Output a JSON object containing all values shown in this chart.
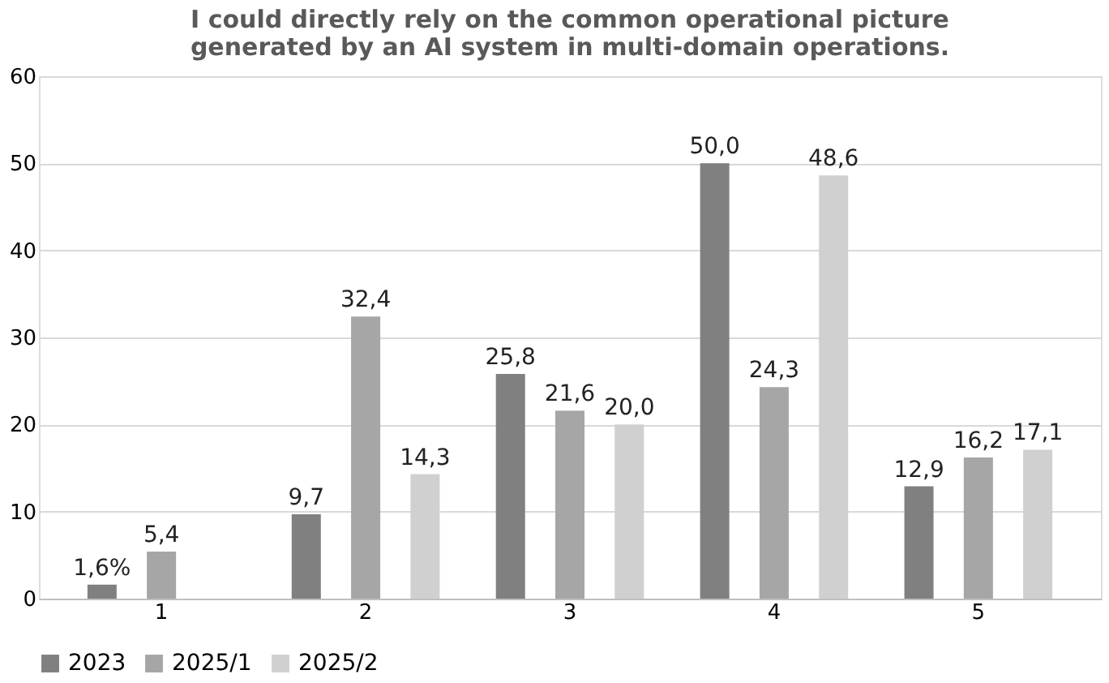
{
  "chart_data": {
    "type": "bar",
    "title": "I could directly rely on the common operational picture generated by an AI system in multi-domain operations.",
    "categories": [
      "1",
      "2",
      "3",
      "4",
      "5"
    ],
    "series": [
      {
        "name": "2023",
        "color": "#808080",
        "values": [
          1.6,
          9.7,
          25.8,
          50.0,
          12.9
        ],
        "value_labels": [
          "1,6%",
          "9,7",
          "25,8",
          "50,0",
          "12,9"
        ]
      },
      {
        "name": "2025/1",
        "color": "#a6a6a6",
        "values": [
          5.4,
          32.4,
          21.6,
          24.3,
          16.2
        ],
        "value_labels": [
          "5,4",
          "32,4",
          "21,6",
          "24,3",
          "16,2"
        ]
      },
      {
        "name": "2025/2",
        "color": "#d0d0d0",
        "values": [
          null,
          14.3,
          20.0,
          48.6,
          17.1
        ],
        "value_labels": [
          null,
          "14,3",
          "20,0",
          "48,6",
          "17,1"
        ]
      }
    ],
    "ylim": [
      0,
      60
    ],
    "yticks": [
      0,
      10,
      20,
      30,
      40,
      50,
      60
    ],
    "grid": "y",
    "legend": "bottom"
  }
}
